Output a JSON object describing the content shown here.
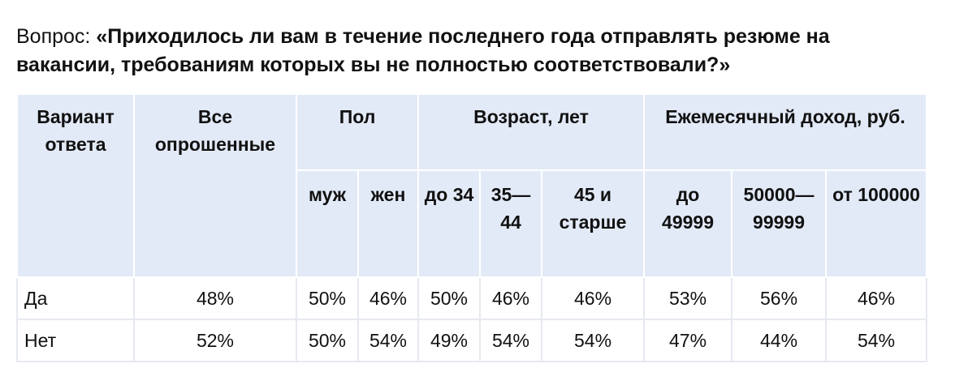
{
  "question": {
    "prefix": "Вопрос: ",
    "text": "«Приходилось ли вам в течение последнего года отправлять резюме на вакансии, требованиям которых вы не полностью соответствовали?»"
  },
  "table": {
    "headers": {
      "answer": "Вариант ответа",
      "all": "Все опрошенные",
      "gender": "Пол",
      "age": "Возраст, лет",
      "income": "Ежемесячный доход, руб."
    },
    "subheaders": {
      "male": "муж",
      "female": "жен",
      "age_under_34": "до 34",
      "age_35_44": "35—44",
      "age_45_plus": "45 и старше",
      "income_under_49999": "до 49999",
      "income_50000_99999": "50000—99999",
      "income_100000_plus": "от 100000"
    },
    "rows": [
      {
        "label": "Да",
        "all": "48%",
        "male": "50%",
        "female": "46%",
        "age_under_34": "50%",
        "age_35_44": "46%",
        "age_45_plus": "46%",
        "income_under_49999": "53%",
        "income_50000_99999": "56%",
        "income_100000_plus": "46%"
      },
      {
        "label": "Нет",
        "all": "52%",
        "male": "50%",
        "female": "54%",
        "age_under_34": "49%",
        "age_35_44": "54%",
        "age_45_plus": "54%",
        "income_under_49999": "47%",
        "income_50000_99999": "44%",
        "income_100000_plus": "54%"
      }
    ]
  },
  "colors": {
    "header_bg": "#e3eaf7",
    "grid": "#e6e9ef",
    "text": "#111111"
  }
}
